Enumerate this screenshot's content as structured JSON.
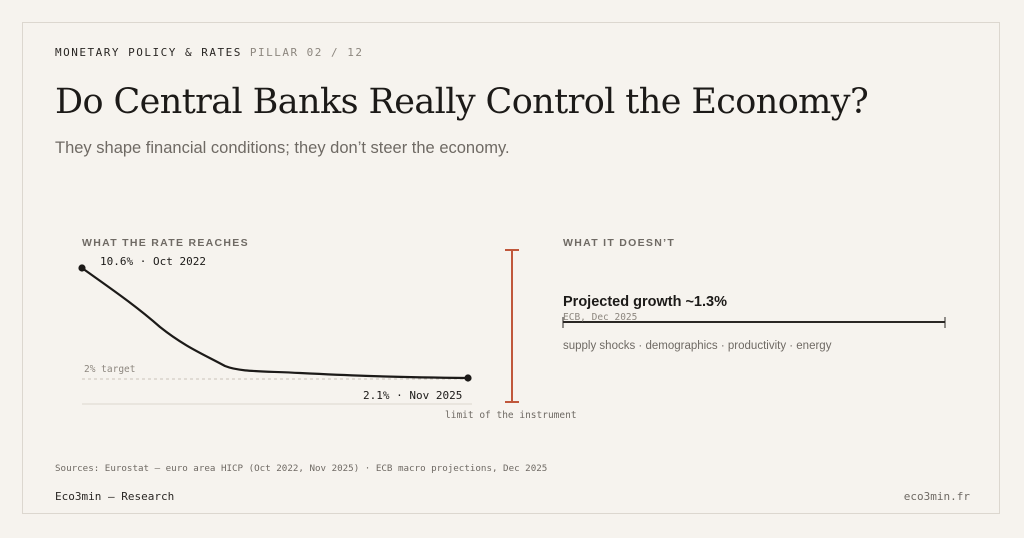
{
  "header": {
    "kicker": "MONETARY POLICY & RATES",
    "pillar": "PILLAR 02 / 12",
    "title": "Do Central Banks Really Control the Economy?",
    "subtitle": "They shape financial conditions; they don’t steer the economy."
  },
  "left_panel": {
    "label": "WHAT THE RATE REACHES",
    "start_label": "10.6% · Oct 2022",
    "end_label": "2.1% · Nov 2025",
    "target_label": "2% target"
  },
  "divider": {
    "label": "limit of the instrument",
    "color": "#c0573b"
  },
  "right_panel": {
    "label": "WHAT IT DOESN’T",
    "growth_title": "Projected growth ~1.3%",
    "growth_source": "ECB, Dec 2025",
    "drivers": "supply shocks · demographics · productivity · energy"
  },
  "chart_data": {
    "type": "line",
    "series": [
      {
        "x": [
          "Oct 2022",
          "Nov 2025"
        ],
        "values": [
          10.6,
          2.1
        ]
      }
    ],
    "reference_line": {
      "value": 2.0,
      "label": "2% target"
    },
    "line_color": "#1c1a18"
  },
  "footer": {
    "sources": "Sources: Eurostat — euro area HICP (Oct 2022, Nov 2025) · ECB macro projections, Dec 2025",
    "brand": "Eco3min — Research",
    "site": "eco3min.fr"
  }
}
